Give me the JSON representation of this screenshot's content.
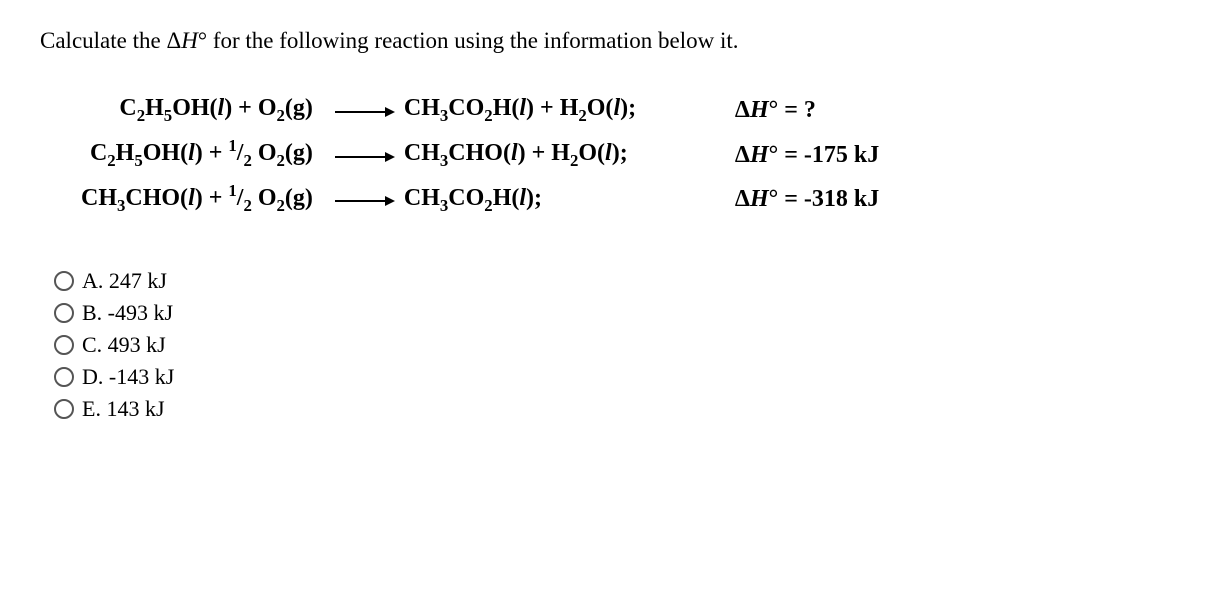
{
  "prompt_prefix": "Calculate the Δ",
  "prompt_H": "H",
  "prompt_deg": "°",
  "prompt_suffix": " for the following reaction using the information below it.",
  "eq1": {
    "lhs_a": "C",
    "lhs_a2": "2",
    "lhs_b": "H",
    "lhs_b2": "5",
    "lhs_c": "OH(",
    "lhs_ph1": "l",
    "lhs_d": ") + O",
    "lhs_d2": "2",
    "lhs_e": "(g)",
    "rhs_a": "CH",
    "rhs_a2": "3",
    "rhs_b": "CO",
    "rhs_b2": "2",
    "rhs_c": "H(",
    "rhs_ph1": "l",
    "rhs_d": ") + H",
    "rhs_d2": "2",
    "rhs_e": "O(",
    "rhs_ph2": "l",
    "rhs_f": ");",
    "dh_pre": "Δ",
    "dh_H": "H",
    "dh_deg": "°",
    "dh_eq": " =  ?"
  },
  "eq2": {
    "lhs_a": "C",
    "lhs_a2": "2",
    "lhs_b": "H",
    "lhs_b2": "5",
    "lhs_c": "OH(",
    "lhs_ph1": "l",
    "lhs_d": ") + ",
    "half_n": "1",
    "half_d": "2",
    "lhs_e": " O",
    "lhs_e2": "2",
    "lhs_f": "(g)",
    "rhs_a": "CH",
    "rhs_a2": "3",
    "rhs_b": "CHO(",
    "rhs_ph1": "l",
    "rhs_c": ") + H",
    "rhs_c2": "2",
    "rhs_d": "O(",
    "rhs_ph2": "l",
    "rhs_e": ");",
    "dh_pre": "Δ",
    "dh_H": "H",
    "dh_deg": "°",
    "dh_eq": " = -175 kJ"
  },
  "eq3": {
    "lhs_a": "CH",
    "lhs_a2": "3",
    "lhs_b": "CHO(",
    "lhs_ph1": "l",
    "lhs_c": ") + ",
    "half_n": "1",
    "half_d": "2",
    "lhs_d": " O",
    "lhs_d2": "2",
    "lhs_e": "(g)",
    "rhs_a": "CH",
    "rhs_a2": "3",
    "rhs_b": "CO",
    "rhs_b2": "2",
    "rhs_c": "H(",
    "rhs_ph1": "l",
    "rhs_d": ");",
    "dh_pre": "Δ",
    "dh_H": "H",
    "dh_deg": "°",
    "dh_eq": " = -318 kJ"
  },
  "choices": {
    "a": "A. 247 kJ",
    "b": "B. -493 kJ",
    "c": "C. 493 kJ",
    "d": "D. -143 kJ",
    "e": "E. 143 kJ"
  }
}
